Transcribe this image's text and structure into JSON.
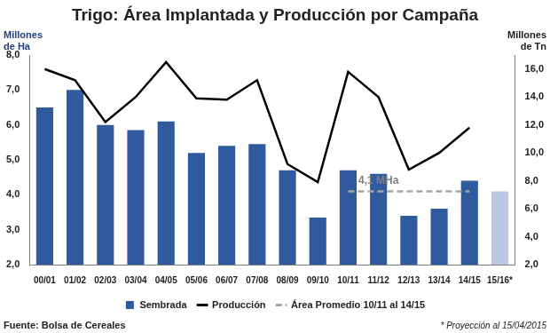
{
  "chart_data": {
    "type": "bar",
    "title": "Trigo: Área Implantada y Producción por Campaña",
    "y_label": "Millones de Ha",
    "y2_label": "Millones de Tn",
    "categories": [
      "00/01",
      "01/02",
      "02/03",
      "03/04",
      "04/05",
      "05/06",
      "06/07",
      "07/08",
      "08/09",
      "09/10",
      "10/11",
      "11/12",
      "12/13",
      "13/14",
      "14/15",
      "15/16*"
    ],
    "series": [
      {
        "name": "Sembrada",
        "type": "bar",
        "color": "#2f5a9e",
        "colors": [
          "#2f5a9e",
          "#2f5a9e",
          "#2f5a9e",
          "#2f5a9e",
          "#2f5a9e",
          "#2f5a9e",
          "#2f5a9e",
          "#2f5a9e",
          "#2f5a9e",
          "#2f5a9e",
          "#2f5a9e",
          "#2f5a9e",
          "#2f5a9e",
          "#2f5a9e",
          "#2f5a9e",
          "#b9c9e4"
        ],
        "values": [
          6.5,
          7.0,
          6.0,
          5.85,
          6.1,
          5.2,
          5.4,
          5.45,
          4.7,
          3.35,
          4.7,
          4.6,
          3.4,
          3.6,
          4.4,
          4.1
        ]
      },
      {
        "name": "Producción",
        "type": "line",
        "axis": "y2",
        "color": "#000000",
        "line_style": "solid",
        "values": [
          16.0,
          15.2,
          12.2,
          14.0,
          16.5,
          13.9,
          13.8,
          15.2,
          9.2,
          7.9,
          15.8,
          14.0,
          8.8,
          10.0,
          11.8,
          null
        ]
      },
      {
        "name": "Área Promedio 10/11 al 14/15",
        "type": "line",
        "color": "#a6a6a6",
        "line_style": "dashed",
        "values": [
          null,
          null,
          null,
          null,
          null,
          null,
          null,
          null,
          null,
          null,
          4.1,
          4.1,
          4.1,
          4.1,
          4.1,
          null
        ]
      }
    ],
    "ylim": [
      2,
      8
    ],
    "yticks": [
      {
        "value": 2,
        "label": "2,0"
      },
      {
        "value": 3,
        "label": "3,0"
      },
      {
        "value": 4,
        "label": "4,0"
      },
      {
        "value": 5,
        "label": "5,0"
      },
      {
        "value": 6,
        "label": "6,0"
      },
      {
        "value": 7,
        "label": "7,0"
      },
      {
        "value": 8,
        "label": "8,0"
      }
    ],
    "y2lim": [
      2,
      17
    ],
    "y2ticks": [
      {
        "value": 2,
        "label": "2,0"
      },
      {
        "value": 4,
        "label": "4,0"
      },
      {
        "value": 6,
        "label": "6,0"
      },
      {
        "value": 8,
        "label": "8,0"
      },
      {
        "value": 10,
        "label": "10,0"
      },
      {
        "value": 12,
        "label": "12,0"
      },
      {
        "value": 14,
        "label": "14,0"
      },
      {
        "value": 16,
        "label": "16,0"
      }
    ],
    "grid": false,
    "legend": "bottom",
    "annotations": [
      {
        "text": "4,1 MHa",
        "category": "11/12",
        "value": 4.1
      }
    ],
    "source": "Fuente: Bolsa de Cereales",
    "note": "* Proyección al 15/04/2015"
  }
}
